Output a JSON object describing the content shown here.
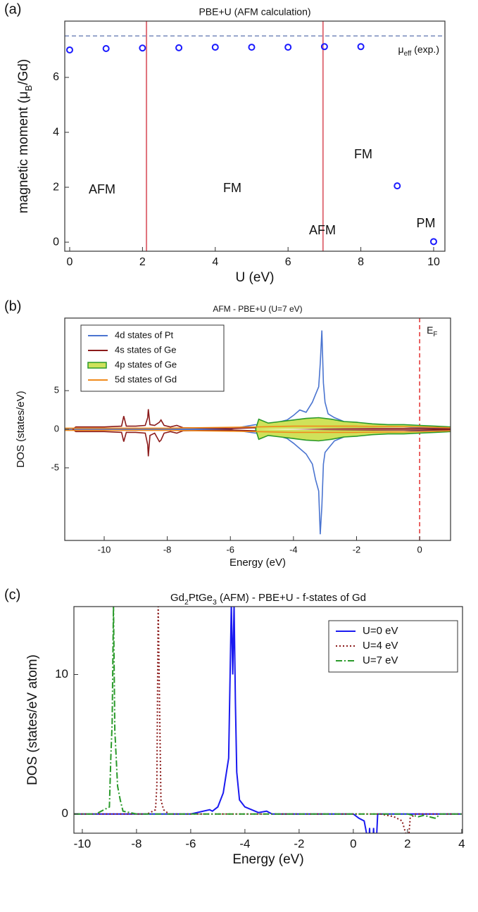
{
  "chart_data": [
    {
      "type": "scatter",
      "panel_label": "(a)",
      "title": "PBE+U (AFM calculation)",
      "xlabel": "U (eV)",
      "ylabel": [
        "magnetic moment (μ",
        "B",
        "/Gd)"
      ],
      "x": [
        0,
        1,
        2,
        3,
        4,
        5,
        6,
        7,
        8,
        9,
        10
      ],
      "values": [
        7.0,
        7.05,
        7.07,
        7.08,
        7.1,
        7.1,
        7.1,
        7.12,
        7.12,
        2.05,
        0.02
      ],
      "color": "#1a1aff",
      "xlim": [
        -0.135,
        10.31
      ],
      "ylim": [
        -0.33,
        8.05
      ],
      "xticks": [
        0,
        2,
        4,
        6,
        8,
        10
      ],
      "yticks": [
        0,
        2,
        4,
        6
      ],
      "reference_lines": [
        {
          "orientation": "horizontal",
          "value": 7.51,
          "label": [
            "μ",
            "eff",
            " (exp.)"
          ],
          "color": "#6a7fb5",
          "style": "dashed"
        },
        {
          "orientation": "vertical",
          "value": 2.11,
          "color": "#e0707a",
          "style": "solid"
        },
        {
          "orientation": "vertical",
          "value": 6.96,
          "color": "#e0707a",
          "style": "solid"
        }
      ],
      "annotations": [
        "AFM",
        "FM",
        "AFM",
        "FM",
        "PM"
      ]
    },
    {
      "type": "line",
      "panel_label": "(b)",
      "title": "AFM - PBE+U (U=7 eV)",
      "xlabel": "Energy (eV)",
      "ylabel": "DOS (states/eV)",
      "xlim": [
        -11.25,
        0.98
      ],
      "ylim": [
        -14.4,
        14.4
      ],
      "xticks": [
        -10,
        -8,
        -6,
        -4,
        -2,
        0
      ],
      "yticks": [
        -5,
        0,
        5
      ],
      "legend": "upper left",
      "reference_lines": [
        {
          "orientation": "vertical",
          "value": 0,
          "label": [
            "E",
            "F"
          ],
          "color": "#e02020",
          "style": "dashed"
        }
      ],
      "series": [
        {
          "name": "4d states of Pt",
          "color": "#4a74d0",
          "style": "solid",
          "x": [
            -11.6,
            -6,
            -5.2,
            -5,
            -4.6,
            -4.2,
            -4,
            -3.8,
            -3.6,
            -3.4,
            -3.3,
            -3.2,
            -3.15,
            -3.1,
            -3.05,
            -3.0,
            -2.9,
            -2.7,
            -2.4,
            -2,
            -1.5,
            -1,
            -0.5,
            0,
            0.5,
            1
          ],
          "values": [
            0,
            0.05,
            0.6,
            0.4,
            0.8,
            1.2,
            1.8,
            2.5,
            2.2,
            3.5,
            4.5,
            5.5,
            8.5,
            12.8,
            6,
            3.5,
            2,
            1.5,
            1,
            0.5,
            0.4,
            0.3,
            0.3,
            0.2,
            0.2,
            0.1
          ],
          "values_down": [
            0,
            -0.05,
            -0.5,
            -0.4,
            -0.7,
            -1.2,
            -1.8,
            -2.5,
            -3.2,
            -4.5,
            -6.5,
            -8,
            -13.6,
            -10,
            -4.5,
            -3,
            -2.5,
            -1.5,
            -1,
            -0.6,
            -0.4,
            -0.3,
            -0.3,
            -0.2,
            -0.2,
            -0.1
          ]
        },
        {
          "name": "4s states of Ge",
          "color": "#8b1a1a",
          "style": "solid",
          "x": [
            -11.0,
            -10.9,
            -10,
            -9.45,
            -9.38,
            -9.3,
            -9.0,
            -8.7,
            -8.62,
            -8.6,
            -8.55,
            -8.4,
            -8.25,
            -8.2,
            -8.1,
            -7.9,
            -7.7,
            -7.5,
            -6,
            -5.2,
            -3,
            0,
            1
          ],
          "values": [
            0,
            0.3,
            0.3,
            0.4,
            1.7,
            0.4,
            0.4,
            0.5,
            1.5,
            2.6,
            0.6,
            0.5,
            0.9,
            1.2,
            0.5,
            0.3,
            0.5,
            0.2,
            0.1,
            0.2,
            0.1,
            0.1,
            0.05
          ],
          "values_down": [
            0,
            -0.3,
            -0.3,
            -0.4,
            -1.6,
            -0.4,
            -0.4,
            -0.5,
            -2,
            -3.5,
            -0.8,
            -0.5,
            -1.6,
            -1.4,
            -0.5,
            -0.3,
            -0.5,
            -0.2,
            -0.1,
            -0.2,
            -0.1,
            -0.1,
            -0.05
          ]
        },
        {
          "name": "4p states of Ge",
          "color": "#2a9a2a",
          "fill_color": "#cfe25a",
          "style": "solid",
          "x": [
            -5.2,
            -5.1,
            -4.8,
            -4.4,
            -4,
            -3.6,
            -3.2,
            -2.8,
            -2.4,
            -2,
            -1.5,
            -1,
            -0.5,
            0,
            0.5,
            1
          ],
          "values": [
            0,
            1.3,
            0.8,
            1,
            1.2,
            1.4,
            1.5,
            1.3,
            1,
            0.9,
            0.7,
            0.6,
            0.6,
            0.5,
            0.4,
            0.3
          ],
          "values_down": [
            0,
            -1.3,
            -0.8,
            -1,
            -1.2,
            -1.4,
            -1.5,
            -1.3,
            -1,
            -0.9,
            -0.7,
            -0.6,
            -0.6,
            -0.5,
            -0.4,
            -0.3
          ]
        },
        {
          "name": "5d states of Gd",
          "color": "#f08a1c",
          "style": "solid",
          "x": [
            -11.6,
            -8,
            -5.2,
            -4,
            -2,
            0,
            1
          ],
          "values": [
            0.15,
            0.15,
            0.3,
            0.4,
            0.4,
            0.3,
            0.2
          ],
          "values_down": [
            -0.15,
            -0.15,
            -0.3,
            -0.4,
            -0.4,
            -0.3,
            -0.2
          ]
        }
      ]
    },
    {
      "type": "line",
      "panel_label": "(c)",
      "title": [
        "Gd",
        "2",
        "PtGe",
        "3",
        " (AFM) - PBE+U - f-states of Gd"
      ],
      "xlabel": "Energy (eV)",
      "ylabel": "DOS (states/eV atom)",
      "xlim": [
        -10.31,
        4.03
      ],
      "ylim": [
        -1.38,
        14.87
      ],
      "xticks": [
        -10,
        -8,
        -6,
        -4,
        -2,
        0,
        2,
        4
      ],
      "yticks": [
        0,
        10
      ],
      "legend": "upper right",
      "series": [
        {
          "name": "U=0 eV",
          "color": "#1a1af0",
          "style": "solid",
          "x": [
            -10.3,
            -6,
            -5.3,
            -5.2,
            -5.0,
            -4.8,
            -4.6,
            -4.5,
            -4.45,
            -4.4,
            -4.35,
            -4.3,
            -4.2,
            -4.0,
            -3.5,
            -3.2,
            -3.0,
            0,
            0.2,
            0.4,
            0.5,
            0.55,
            0.6,
            0.65,
            0.7,
            0.75,
            0.8,
            0.85,
            0.9,
            2,
            4
          ],
          "values": [
            0,
            0,
            0.3,
            0.2,
            0.5,
            1.5,
            4,
            15,
            10,
            15,
            8,
            3,
            1,
            0.5,
            0.1,
            0.2,
            0,
            0,
            -0.3,
            -0.5,
            -1.5,
            -3,
            -1,
            -4,
            -3,
            -1,
            -4,
            -2,
            0,
            0,
            0
          ]
        },
        {
          "name": "U=4 eV",
          "color": "#8b1a1a",
          "style": "dotted",
          "x": [
            -10.3,
            -7.6,
            -7.3,
            -7.25,
            -7.2,
            -7.15,
            -7.1,
            -7.0,
            -6.8,
            -4,
            0,
            1.0,
            1.5,
            1.8,
            1.95,
            2.0,
            2.05,
            2.1,
            2.3,
            3,
            4
          ],
          "values": [
            0,
            0,
            0.3,
            2,
            15,
            8,
            1,
            0.3,
            0,
            0,
            0,
            0,
            -0.2,
            -0.5,
            -1.5,
            -1.5,
            -1.5,
            -0.3,
            0,
            0,
            0
          ]
        },
        {
          "name": "U=7 eV",
          "color": "#2a9a2a",
          "style": "dashdot",
          "x": [
            -10.3,
            -9.5,
            -9.0,
            -8.95,
            -8.9,
            -8.85,
            -8.8,
            -8.75,
            -8.7,
            -8.6,
            -8.5,
            -8,
            -4,
            0,
            2,
            2.4,
            2.6,
            3,
            3.05,
            3.2,
            4
          ],
          "values": [
            0,
            0,
            0.5,
            4,
            6.5,
            15,
            6,
            4,
            2,
            1,
            0.2,
            0,
            0,
            0,
            0,
            -0.2,
            -0.1,
            -0.3,
            -0.3,
            0,
            0
          ]
        }
      ]
    }
  ]
}
